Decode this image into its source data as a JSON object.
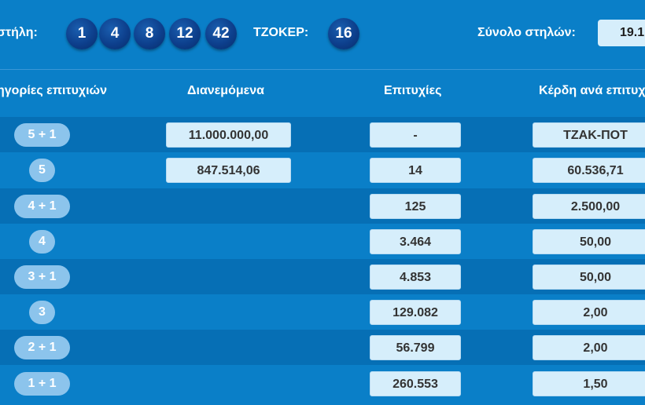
{
  "header": {
    "column_label": "στήλη:",
    "numbers": [
      "1",
      "4",
      "8",
      "12",
      "42"
    ],
    "joker_label": "ΤΖΟΚΕΡ:",
    "joker": "16",
    "total_label": "Σύνολο στηλών:",
    "total_value": "19.1"
  },
  "table": {
    "headers": {
      "category": "ηγορίες επιτυχιών",
      "distributed": "Διανεμόμενα",
      "winners": "Επιτυχίες",
      "prize": "Κέρδη ανά επιτυχ"
    },
    "rows": [
      {
        "category": "5 + 1",
        "distributed": "11.000.000,00",
        "winners": "-",
        "prize": "ΤΖΑΚ-ΠΟΤ"
      },
      {
        "category": "5",
        "distributed": "847.514,06",
        "winners": "14",
        "prize": "60.536,71"
      },
      {
        "category": "4 + 1",
        "distributed": "",
        "winners": "125",
        "prize": "2.500,00"
      },
      {
        "category": "4",
        "distributed": "",
        "winners": "3.464",
        "prize": "50,00"
      },
      {
        "category": "3 + 1",
        "distributed": "",
        "winners": "4.853",
        "prize": "50,00"
      },
      {
        "category": "3",
        "distributed": "",
        "winners": "129.082",
        "prize": "2,00"
      },
      {
        "category": "2 + 1",
        "distributed": "",
        "winners": "56.799",
        "prize": "2,00"
      },
      {
        "category": "1 + 1",
        "distributed": "",
        "winners": "260.553",
        "prize": "1,50"
      }
    ]
  }
}
